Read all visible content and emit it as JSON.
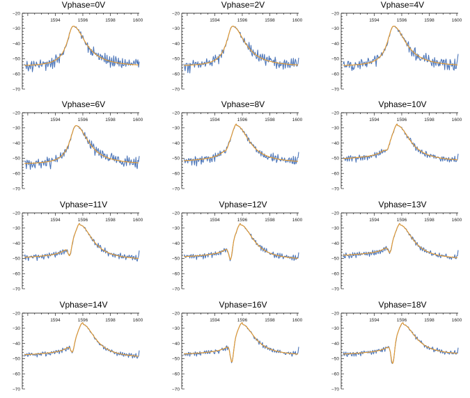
{
  "chart_data": {
    "type": "line",
    "layout": "grid 4 rows x 3 columns",
    "shared_axes": {
      "x_ticks": [
        1594,
        1596,
        1598,
        1600
      ],
      "x_range": [
        1591.6,
        1600.1
      ],
      "x_ticks_position": "top",
      "y_ticks": [
        -20,
        -30,
        -40,
        -50,
        -60,
        -70
      ],
      "y_range": [
        -70,
        -20
      ],
      "grid": false
    },
    "series_colors": {
      "measured": "#4a74b8",
      "fit": "#e89a2a"
    },
    "panels": [
      {
        "title": "Vphase=0V",
        "peak_x": 1595.3,
        "peak_y": -28.5,
        "left_level": -55,
        "right_level": -55.5,
        "dip_depth": 0,
        "noise": 3.2
      },
      {
        "title": "Vphase=2V",
        "peak_x": 1595.3,
        "peak_y": -28.5,
        "left_level": -55,
        "right_level": -55.5,
        "dip_depth": 0,
        "noise": 3.2
      },
      {
        "title": "Vphase=4V",
        "peak_x": 1595.4,
        "peak_y": -28.5,
        "left_level": -55,
        "right_level": -55.5,
        "dip_depth": 0,
        "noise": 3.2
      },
      {
        "title": "Vphase=6V",
        "peak_x": 1595.5,
        "peak_y": -28.5,
        "left_level": -54,
        "right_level": -54.5,
        "dip_depth": 0,
        "noise": 3.0
      },
      {
        "title": "Vphase=8V",
        "peak_x": 1595.6,
        "peak_y": -28.5,
        "left_level": -52,
        "right_level": -53.5,
        "dip_depth": 1.5,
        "noise": 2.4
      },
      {
        "title": "Vphase=10V",
        "peak_x": 1595.7,
        "peak_y": -28.5,
        "left_level": -50.5,
        "right_level": -52.5,
        "dip_depth": 2.5,
        "noise": 1.8
      },
      {
        "title": "Vphase=11V",
        "peak_x": 1595.8,
        "peak_y": -28.0,
        "left_level": -49.5,
        "right_level": -51.5,
        "dip_depth": 7,
        "noise": 1.6
      },
      {
        "title": "Vphase=12V",
        "peak_x": 1595.9,
        "peak_y": -28.0,
        "left_level": -49,
        "right_level": -51.5,
        "dip_depth": 10,
        "noise": 1.5
      },
      {
        "title": "Vphase=13V",
        "peak_x": 1595.9,
        "peak_y": -28.0,
        "left_level": -48,
        "right_level": -51,
        "dip_depth": 6,
        "noise": 1.4
      },
      {
        "title": "Vphase=14V",
        "peak_x": 1596.0,
        "peak_y": -27.5,
        "left_level": -47.5,
        "right_level": -50,
        "dip_depth": 6,
        "noise": 1.3
      },
      {
        "title": "Vphase=16V",
        "peak_x": 1596.0,
        "peak_y": -27.5,
        "left_level": -47,
        "right_level": -48.5,
        "dip_depth": 13,
        "noise": 1.3
      },
      {
        "title": "Vphase=18V",
        "peak_x": 1596.1,
        "peak_y": -27.5,
        "left_level": -47,
        "right_level": -48,
        "dip_depth": 14,
        "noise": 1.3
      }
    ]
  }
}
